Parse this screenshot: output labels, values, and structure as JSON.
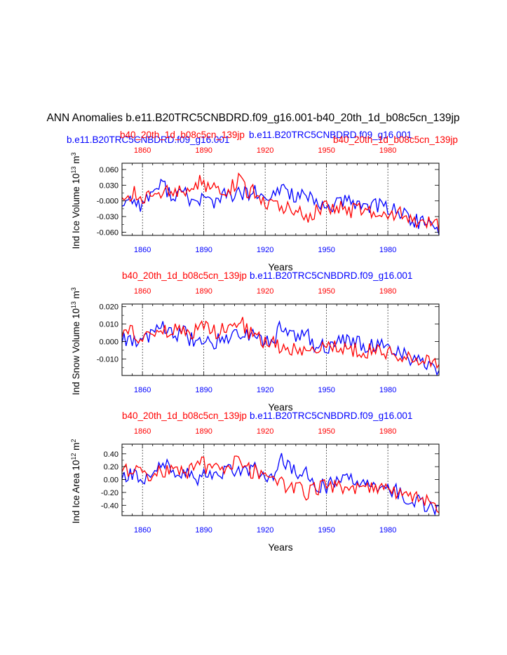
{
  "title": "ANN Anomalies b.e11.B20TRC5CNBDRD.f09_g16.001-b40_20th_1d_b08c5cn_139jp",
  "header": {
    "left": "b.e11.B20TRC5CNBDRD.f09_g16.001",
    "center": "b40_20th_1d_b08c5cn_139jp",
    "right": "b40_20th_1d_b08c5cn_139jp",
    "overlap": "b.e11.B20TRC5CNBDRD.f09_g16.001"
  },
  "colors": {
    "case1": "#0000ff",
    "case2": "#ff0000",
    "axis": "#000000"
  },
  "chart_data": [
    {
      "type": "line",
      "id": "ice_volume",
      "ylabel": "Ind Ice Volume 10",
      "ylabel_exp": "13",
      "ylabel_unit": "m",
      "ylabel_unit_exp": "3",
      "top_left_label": "b40_20th_1d_b08c5cn_139jp",
      "top_right_label": "b.e11.B20TRC5CNBDRD.f09_g16.001",
      "xlabel": "Years",
      "xlim": [
        1850,
        2005
      ],
      "ylim": [
        -0.066,
        0.072
      ],
      "yticks": [
        0.06,
        0.03,
        0.0,
        -0.03,
        -0.06
      ],
      "yticklabels": [
        "0.060",
        "0.030",
        "-0.000",
        "-0.030",
        "-0.060"
      ],
      "xticks": [
        1860,
        1890,
        1920,
        1950,
        1980
      ],
      "xticklabels": [
        "1860",
        "1890",
        "1920",
        "1950",
        "1980"
      ],
      "seed": 11,
      "series": [
        {
          "name": "b.e11.B20TRC5CNBDRD.f09_g16.001",
          "color": "#0000ff",
          "knots": [
            [
              1850,
              -0.003
            ],
            [
              1855,
              0.004
            ],
            [
              1860,
              -0.008
            ],
            [
              1865,
              0.02
            ],
            [
              1870,
              0.03
            ],
            [
              1875,
              0.01
            ],
            [
              1880,
              0.015
            ],
            [
              1885,
              -0.003
            ],
            [
              1890,
              0.005
            ],
            [
              1895,
              -0.002
            ],
            [
              1900,
              0.01
            ],
            [
              1905,
              0.012
            ],
            [
              1910,
              0.012
            ],
            [
              1915,
              0.016
            ],
            [
              1918,
              0.005
            ],
            [
              1920,
              -0.002
            ],
            [
              1925,
              0.01
            ],
            [
              1928,
              0.03
            ],
            [
              1932,
              0.015
            ],
            [
              1935,
              0.01
            ],
            [
              1940,
              0.01
            ],
            [
              1945,
              -0.01
            ],
            [
              1950,
              -0.012
            ],
            [
              1955,
              -0.005
            ],
            [
              1960,
              -0.002
            ],
            [
              1965,
              -0.005
            ],
            [
              1970,
              -0.008
            ],
            [
              1975,
              -0.01
            ],
            [
              1980,
              -0.012
            ],
            [
              1985,
              -0.018
            ],
            [
              1990,
              -0.035
            ],
            [
              1995,
              -0.04
            ],
            [
              2000,
              -0.045
            ],
            [
              2005,
              -0.06
            ]
          ]
        },
        {
          "name": "b40_20th_1d_b08c5cn_139jp",
          "color": "#ff0000",
          "knots": [
            [
              1850,
              0.012
            ],
            [
              1855,
              0.015
            ],
            [
              1860,
              0.005
            ],
            [
              1865,
              0.01
            ],
            [
              1870,
              0.02
            ],
            [
              1875,
              0.02
            ],
            [
              1880,
              0.015
            ],
            [
              1885,
              0.02
            ],
            [
              1889,
              0.045
            ],
            [
              1892,
              0.02
            ],
            [
              1897,
              0.02
            ],
            [
              1902,
              0.025
            ],
            [
              1905,
              0.03
            ],
            [
              1908,
              0.045
            ],
            [
              1911,
              0.02
            ],
            [
              1915,
              0.015
            ],
            [
              1920,
              0.0
            ],
            [
              1925,
              -0.005
            ],
            [
              1930,
              -0.015
            ],
            [
              1935,
              -0.015
            ],
            [
              1940,
              -0.03
            ],
            [
              1945,
              -0.02
            ],
            [
              1950,
              -0.01
            ],
            [
              1955,
              -0.01
            ],
            [
              1960,
              -0.02
            ],
            [
              1965,
              -0.018
            ],
            [
              1970,
              -0.02
            ],
            [
              1975,
              -0.015
            ],
            [
              1980,
              -0.025
            ],
            [
              1985,
              -0.025
            ],
            [
              1990,
              -0.03
            ],
            [
              1995,
              -0.04
            ],
            [
              2000,
              -0.045
            ],
            [
              2005,
              -0.05
            ]
          ]
        }
      ]
    },
    {
      "type": "line",
      "id": "snow_volume",
      "ylabel": "Ind Snow Volume 10",
      "ylabel_exp": "13",
      "ylabel_unit": "m",
      "ylabel_unit_exp": "3",
      "top_left_label": "b40_20th_1d_b08c5cn_139jp",
      "top_right_label": "b.e11.B20TRC5CNBDRD.f09_g16.001",
      "xlabel": "Years",
      "xlim": [
        1850,
        2005
      ],
      "ylim": [
        -0.0195,
        0.0215
      ],
      "yticks": [
        0.02,
        0.01,
        0.0,
        -0.01
      ],
      "yticklabels": [
        "0.020",
        "0.010",
        "0.000",
        "-0.010"
      ],
      "xticks": [
        1860,
        1890,
        1920,
        1950,
        1980
      ],
      "xticklabels": [
        "1860",
        "1890",
        "1920",
        "1950",
        "1980"
      ],
      "seed": 23,
      "series": [
        {
          "name": "b.e11.B20TRC5CNBDRD.f09_g16.001",
          "color": "#0000ff",
          "knots": [
            [
              1850,
              0.001
            ],
            [
              1855,
              0.002
            ],
            [
              1860,
              -0.002
            ],
            [
              1865,
              0.006
            ],
            [
              1870,
              0.009
            ],
            [
              1875,
              0.003
            ],
            [
              1880,
              0.005
            ],
            [
              1885,
              0.0
            ],
            [
              1890,
              0.002
            ],
            [
              1895,
              0.0
            ],
            [
              1900,
              0.003
            ],
            [
              1905,
              0.004
            ],
            [
              1910,
              0.004
            ],
            [
              1915,
              0.005
            ],
            [
              1918,
              0.001
            ],
            [
              1920,
              0.0
            ],
            [
              1925,
              0.003
            ],
            [
              1928,
              0.009
            ],
            [
              1932,
              0.005
            ],
            [
              1935,
              0.003
            ],
            [
              1940,
              0.004
            ],
            [
              1945,
              -0.003
            ],
            [
              1950,
              -0.003
            ],
            [
              1955,
              -0.001
            ],
            [
              1960,
              0.0
            ],
            [
              1965,
              -0.001
            ],
            [
              1970,
              -0.002
            ],
            [
              1975,
              -0.002
            ],
            [
              1980,
              -0.003
            ],
            [
              1985,
              -0.005
            ],
            [
              1990,
              -0.01
            ],
            [
              1995,
              -0.011
            ],
            [
              2000,
              -0.013
            ],
            [
              2005,
              -0.016
            ]
          ]
        },
        {
          "name": "b40_20th_1d_b08c5cn_139jp",
          "color": "#ff0000",
          "knots": [
            [
              1850,
              0.004
            ],
            [
              1855,
              0.005
            ],
            [
              1860,
              0.002
            ],
            [
              1865,
              0.003
            ],
            [
              1870,
              0.006
            ],
            [
              1875,
              0.006
            ],
            [
              1880,
              0.005
            ],
            [
              1885,
              0.006
            ],
            [
              1889,
              0.013
            ],
            [
              1892,
              0.006
            ],
            [
              1897,
              0.006
            ],
            [
              1902,
              0.008
            ],
            [
              1905,
              0.009
            ],
            [
              1908,
              0.013
            ],
            [
              1911,
              0.006
            ],
            [
              1915,
              0.005
            ],
            [
              1920,
              0.0
            ],
            [
              1925,
              -0.001
            ],
            [
              1930,
              -0.004
            ],
            [
              1935,
              -0.004
            ],
            [
              1940,
              -0.008
            ],
            [
              1945,
              -0.006
            ],
            [
              1950,
              -0.003
            ],
            [
              1955,
              -0.003
            ],
            [
              1960,
              -0.006
            ],
            [
              1965,
              -0.005
            ],
            [
              1970,
              -0.006
            ],
            [
              1975,
              -0.004
            ],
            [
              1980,
              -0.007
            ],
            [
              1985,
              -0.007
            ],
            [
              1990,
              -0.009
            ],
            [
              1995,
              -0.011
            ],
            [
              2000,
              -0.012
            ],
            [
              2005,
              -0.014
            ]
          ]
        }
      ]
    },
    {
      "type": "line",
      "id": "ice_area",
      "ylabel": "Ind Ice Area 10",
      "ylabel_exp": "12",
      "ylabel_unit": "m",
      "ylabel_unit_exp": "2",
      "top_left_label": "b40_20th_1d_b08c5cn_139jp",
      "top_right_label": "b.e11.B20TRC5CNBDRD.f09_g16.001",
      "xlabel": "Years",
      "xlim": [
        1850,
        2005
      ],
      "ylim": [
        -0.56,
        0.55
      ],
      "yticks": [
        0.4,
        0.2,
        0.0,
        -0.2,
        -0.4
      ],
      "yticklabels": [
        "0.40",
        "0.20",
        "0.00",
        "-0.20",
        "-0.40"
      ],
      "xticks": [
        1860,
        1890,
        1920,
        1950,
        1980
      ],
      "xticklabels": [
        "1860",
        "1890",
        "1920",
        "1950",
        "1980"
      ],
      "seed": 37,
      "series": [
        {
          "name": "b.e11.B20TRC5CNBDRD.f09_g16.001",
          "color": "#0000ff",
          "knots": [
            [
              1850,
              0.05
            ],
            [
              1855,
              0.05
            ],
            [
              1860,
              0.0
            ],
            [
              1865,
              0.15
            ],
            [
              1870,
              0.25
            ],
            [
              1875,
              0.1
            ],
            [
              1880,
              0.15
            ],
            [
              1885,
              0.0
            ],
            [
              1890,
              0.05
            ],
            [
              1895,
              0.0
            ],
            [
              1900,
              0.1
            ],
            [
              1905,
              0.15
            ],
            [
              1910,
              0.15
            ],
            [
              1915,
              0.2
            ],
            [
              1918,
              0.05
            ],
            [
              1920,
              0.0
            ],
            [
              1925,
              0.1
            ],
            [
              1928,
              0.3
            ],
            [
              1932,
              0.15
            ],
            [
              1935,
              0.1
            ],
            [
              1940,
              0.1
            ],
            [
              1945,
              -0.1
            ],
            [
              1950,
              -0.1
            ],
            [
              1955,
              -0.05
            ],
            [
              1960,
              0.0
            ],
            [
              1965,
              -0.05
            ],
            [
              1970,
              -0.1
            ],
            [
              1975,
              -0.1
            ],
            [
              1980,
              -0.12
            ],
            [
              1985,
              -0.2
            ],
            [
              1990,
              -0.3
            ],
            [
              1995,
              -0.35
            ],
            [
              2000,
              -0.4
            ],
            [
              2005,
              -0.5
            ]
          ]
        },
        {
          "name": "b40_20th_1d_b08c5cn_139jp",
          "color": "#ff0000",
          "knots": [
            [
              1850,
              0.15
            ],
            [
              1855,
              0.15
            ],
            [
              1860,
              0.05
            ],
            [
              1865,
              0.1
            ],
            [
              1870,
              0.15
            ],
            [
              1875,
              0.15
            ],
            [
              1880,
              0.1
            ],
            [
              1885,
              0.15
            ],
            [
              1889,
              0.3
            ],
            [
              1892,
              0.15
            ],
            [
              1897,
              0.15
            ],
            [
              1902,
              0.2
            ],
            [
              1905,
              0.25
            ],
            [
              1908,
              0.35
            ],
            [
              1911,
              0.15
            ],
            [
              1915,
              0.12
            ],
            [
              1920,
              0.0
            ],
            [
              1925,
              -0.05
            ],
            [
              1930,
              -0.1
            ],
            [
              1935,
              -0.1
            ],
            [
              1940,
              -0.2
            ],
            [
              1945,
              -0.15
            ],
            [
              1950,
              -0.1
            ],
            [
              1955,
              -0.1
            ],
            [
              1960,
              -0.15
            ],
            [
              1965,
              -0.12
            ],
            [
              1970,
              -0.15
            ],
            [
              1975,
              -0.1
            ],
            [
              1980,
              -0.2
            ],
            [
              1985,
              -0.2
            ],
            [
              1990,
              -0.25
            ],
            [
              1995,
              -0.3
            ],
            [
              2000,
              -0.35
            ],
            [
              2005,
              -0.4
            ]
          ]
        }
      ]
    }
  ]
}
